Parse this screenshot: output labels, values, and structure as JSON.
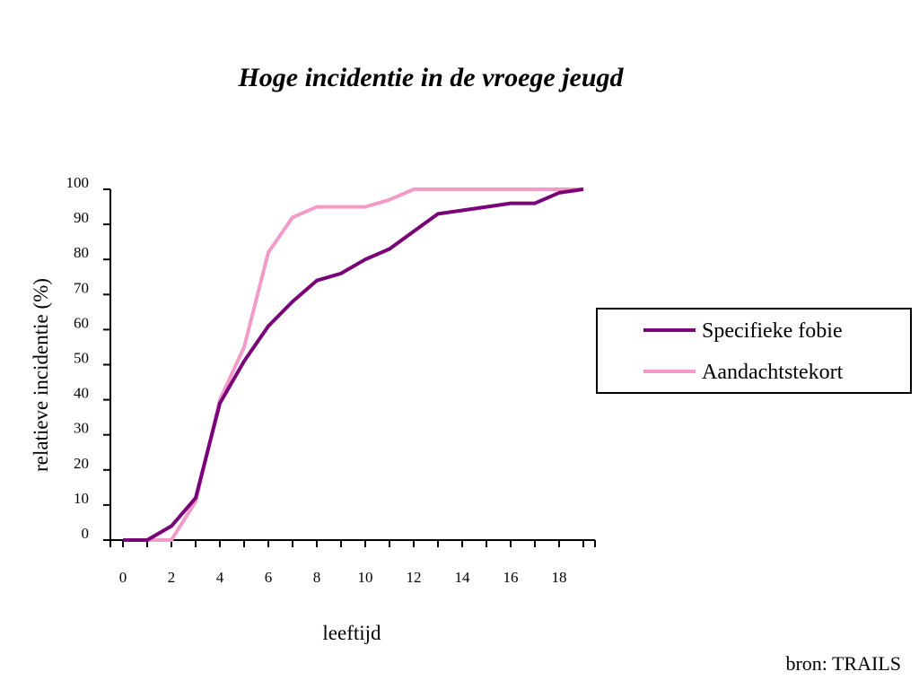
{
  "chart_data": {
    "type": "line",
    "title": "Hoge incidentie in de vroege jeugd",
    "xlabel": "leeftijd",
    "ylabel": "relatieve incidentie (%)",
    "x": [
      0,
      1,
      2,
      3,
      4,
      5,
      6,
      7,
      8,
      9,
      10,
      11,
      12,
      13,
      14,
      15,
      16,
      17,
      18,
      19
    ],
    "xlim": [
      0,
      19
    ],
    "ylim": [
      0,
      100
    ],
    "x_tick_labels": [
      "0",
      "2",
      "4",
      "6",
      "8",
      "10",
      "12",
      "14",
      "16",
      "18"
    ],
    "y_tick_labels": [
      "0",
      "10",
      "20",
      "30",
      "40",
      "50",
      "60",
      "70",
      "80",
      "90",
      "100"
    ],
    "series": [
      {
        "name": "Specifieke fobie",
        "color": "#7a007a",
        "values": [
          0,
          0,
          4,
          12,
          39,
          51,
          61,
          68,
          74,
          76,
          80,
          83,
          88,
          93,
          94,
          95,
          96,
          96,
          99,
          100
        ]
      },
      {
        "name": "Aandachtstekort",
        "color": "#f49ac9",
        "values": [
          0,
          0,
          0,
          11,
          40,
          55,
          82,
          92,
          95,
          95,
          95,
          97,
          100,
          100,
          100,
          100,
          100,
          100,
          100,
          100
        ]
      }
    ],
    "grid": false,
    "legend_position": "right"
  },
  "source_note": "bron: TRAILS"
}
